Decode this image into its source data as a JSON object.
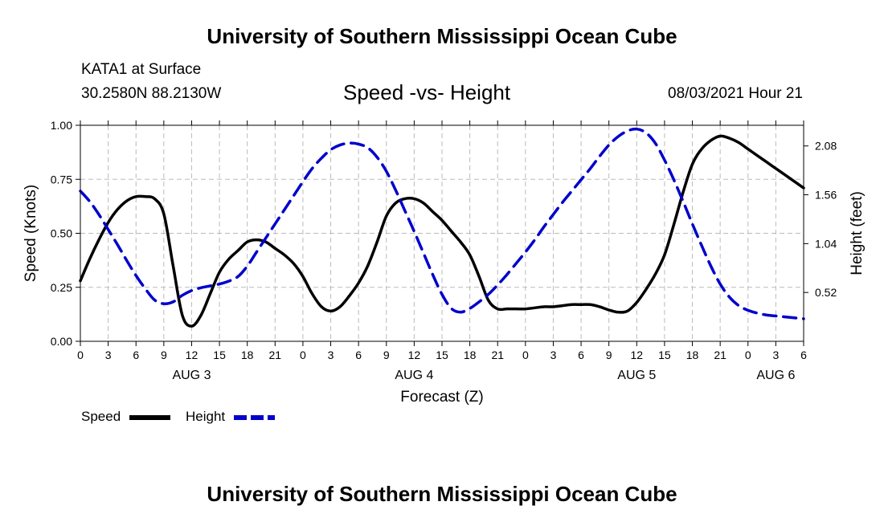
{
  "page": {
    "title_top": "University of Southern Mississippi Ocean Cube",
    "title_bottom": "University of Southern Mississippi Ocean Cube",
    "station_name": "KATA1 at Surface",
    "station_coords": "30.2580N  88.2130W",
    "plot_title": "Speed -vs- Height",
    "run_time": "08/03/2021 Hour 21"
  },
  "chart_data": {
    "type": "line",
    "title": "Speed -vs- Height",
    "xlabel": "Forecast (Z)",
    "ylabel_left": "Speed (Knots)",
    "ylabel_right": "Height (feet)",
    "x_unit": "hours since 08/03/2021 00Z",
    "xlim": [
      0,
      78
    ],
    "x_ticks": [
      0,
      3,
      6,
      9,
      12,
      15,
      18,
      21,
      24,
      27,
      30,
      33,
      36,
      39,
      42,
      45,
      48,
      51,
      54,
      57,
      60,
      63,
      66,
      69,
      72,
      75,
      78
    ],
    "x_tick_labels": [
      "0",
      "3",
      "6",
      "9",
      "12",
      "15",
      "18",
      "21",
      "0",
      "3",
      "6",
      "9",
      "12",
      "15",
      "18",
      "21",
      "0",
      "3",
      "6",
      "9",
      "12",
      "15",
      "18",
      "21",
      "0",
      "3",
      "6"
    ],
    "x_day_labels": [
      {
        "x": 12,
        "label": "AUG 3"
      },
      {
        "x": 36,
        "label": "AUG 4"
      },
      {
        "x": 60,
        "label": "AUG 5"
      },
      {
        "x": 75,
        "label": "AUG 6"
      }
    ],
    "y_left": {
      "lim": [
        0,
        1.0
      ],
      "ticks": [
        0,
        0.25,
        0.5,
        0.75,
        1.0
      ],
      "tick_labels": [
        "0.00",
        "0.25",
        "0.50",
        "0.75",
        "1.00"
      ]
    },
    "y_right": {
      "lim": [
        0,
        2.3
      ],
      "ticks": [
        0.52,
        1.04,
        1.56,
        2.08
      ],
      "tick_labels": [
        "0.52",
        "1.04",
        "1.56",
        "2.08"
      ]
    },
    "grid": true,
    "legend": [
      {
        "name": "Speed",
        "color": "#000000",
        "style": "solid"
      },
      {
        "name": "Height",
        "color": "#0000cc",
        "style": "dashed"
      }
    ],
    "series": [
      {
        "name": "Speed",
        "axis": "left",
        "color": "#000000",
        "x": [
          0,
          1,
          2,
          3,
          4,
          5,
          6,
          7,
          8,
          9,
          10,
          11,
          12,
          13,
          14,
          15,
          16,
          17,
          18,
          19,
          20,
          21,
          22,
          23,
          24,
          25,
          26,
          27,
          28,
          29,
          30,
          31,
          32,
          33,
          34,
          35,
          36,
          37,
          38,
          39,
          40,
          41,
          42,
          43,
          44,
          45,
          46,
          47,
          48,
          49,
          50,
          51,
          52,
          53,
          54,
          55,
          56,
          57,
          58,
          59,
          60,
          61,
          62,
          63,
          64,
          65,
          66,
          67,
          68,
          69,
          70,
          71,
          72,
          73,
          74,
          75,
          76,
          77,
          78
        ],
        "values": [
          0.28,
          0.38,
          0.47,
          0.55,
          0.61,
          0.65,
          0.67,
          0.67,
          0.66,
          0.59,
          0.35,
          0.12,
          0.07,
          0.12,
          0.22,
          0.32,
          0.38,
          0.42,
          0.46,
          0.47,
          0.46,
          0.43,
          0.4,
          0.36,
          0.3,
          0.22,
          0.16,
          0.14,
          0.16,
          0.21,
          0.27,
          0.35,
          0.46,
          0.58,
          0.64,
          0.66,
          0.66,
          0.64,
          0.6,
          0.56,
          0.51,
          0.46,
          0.4,
          0.3,
          0.19,
          0.15,
          0.15,
          0.15,
          0.15,
          0.155,
          0.16,
          0.16,
          0.165,
          0.17,
          0.17,
          0.17,
          0.16,
          0.145,
          0.135,
          0.14,
          0.18,
          0.24,
          0.31,
          0.4,
          0.54,
          0.69,
          0.82,
          0.89,
          0.93,
          0.95,
          0.94,
          0.92,
          0.89,
          0.86,
          0.83,
          0.8,
          0.77,
          0.74,
          0.71
        ]
      },
      {
        "name": "Height",
        "axis": "right",
        "color": "#0000cc",
        "x": [
          0,
          1,
          2,
          3,
          4,
          5,
          6,
          7,
          8,
          9,
          10,
          11,
          12,
          13,
          14,
          15,
          16,
          17,
          18,
          19,
          20,
          21,
          22,
          23,
          24,
          25,
          26,
          27,
          28,
          29,
          30,
          31,
          32,
          33,
          34,
          35,
          36,
          37,
          38,
          39,
          40,
          41,
          42,
          43,
          44,
          45,
          46,
          47,
          48,
          49,
          50,
          51,
          52,
          53,
          54,
          55,
          56,
          57,
          58,
          59,
          60,
          61,
          62,
          63,
          64,
          65,
          66,
          67,
          68,
          69,
          70,
          71,
          72,
          73,
          74,
          75,
          76,
          77,
          78
        ],
        "values": [
          1.6,
          1.49,
          1.35,
          1.19,
          1.03,
          0.86,
          0.7,
          0.56,
          0.44,
          0.4,
          0.42,
          0.49,
          0.54,
          0.57,
          0.59,
          0.61,
          0.64,
          0.69,
          0.8,
          0.95,
          1.1,
          1.25,
          1.4,
          1.55,
          1.7,
          1.84,
          1.95,
          2.04,
          2.09,
          2.11,
          2.1,
          2.06,
          1.96,
          1.81,
          1.61,
          1.39,
          1.17,
          0.94,
          0.71,
          0.5,
          0.35,
          0.31,
          0.35,
          0.42,
          0.5,
          0.6,
          0.71,
          0.83,
          0.95,
          1.08,
          1.22,
          1.35,
          1.48,
          1.6,
          1.72,
          1.84,
          1.97,
          2.09,
          2.18,
          2.24,
          2.26,
          2.22,
          2.11,
          1.93,
          1.72,
          1.49,
          1.25,
          1.02,
          0.8,
          0.61,
          0.47,
          0.38,
          0.33,
          0.3,
          0.28,
          0.27,
          0.26,
          0.25,
          0.24
        ]
      }
    ]
  }
}
